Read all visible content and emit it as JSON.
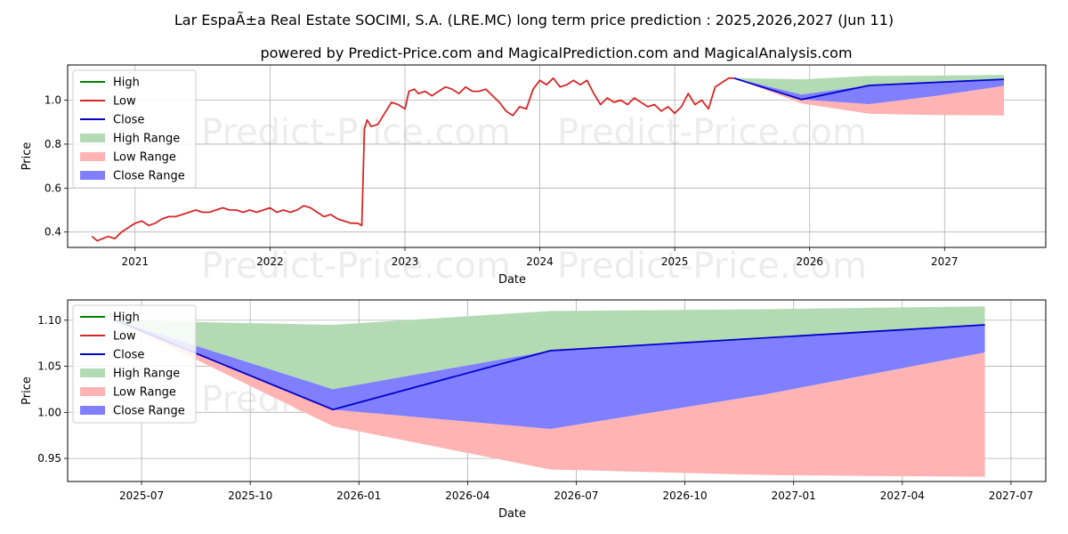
{
  "title": "Lar EspaÃ±a Real Estate SOCIMI, S.A. (LRE.MC) long term price prediction : 2025,2026,2027 (Jun 11)",
  "subtitle": "powered by Predict-Price.com and MagicalPrediction.com and MagicalAnalysis.com",
  "watermark": "Predict-Price.com",
  "colors": {
    "high": "#008000",
    "low": "#d62728",
    "close": "#0000cc",
    "high_range": "#b3dbb3",
    "low_range": "#ffb3b3",
    "close_range": "#7f7fff",
    "grid": "#b0b0b0"
  },
  "legend": [
    "High",
    "Low",
    "Close",
    "High Range",
    "Low Range",
    "Close Range"
  ],
  "chart_data": [
    {
      "type": "line",
      "name": "top",
      "xlabel": "Date",
      "ylabel": "Price",
      "xlim": [
        2020.5,
        2027.75
      ],
      "ylim": [
        0.33,
        1.16
      ],
      "x_ticks": [
        2021,
        2022,
        2023,
        2024,
        2025,
        2026,
        2027
      ],
      "x_tick_labels": [
        "2021",
        "2022",
        "2023",
        "2024",
        "2025",
        "2026",
        "2027"
      ],
      "y_ticks": [
        0.4,
        0.6,
        0.8,
        1.0
      ],
      "y_tick_labels": [
        "0.4",
        "0.6",
        "0.8",
        "1.0"
      ],
      "history": {
        "name": "Low",
        "x": [
          2020.68,
          2020.72,
          2020.76,
          2020.8,
          2020.85,
          2020.9,
          2020.95,
          2021.0,
          2021.05,
          2021.1,
          2021.15,
          2021.2,
          2021.25,
          2021.3,
          2021.35,
          2021.4,
          2021.45,
          2021.5,
          2021.55,
          2021.6,
          2021.65,
          2021.7,
          2021.75,
          2021.8,
          2021.85,
          2021.9,
          2021.95,
          2022.0,
          2022.05,
          2022.1,
          2022.15,
          2022.2,
          2022.25,
          2022.3,
          2022.35,
          2022.4,
          2022.45,
          2022.5,
          2022.55,
          2022.6,
          2022.65,
          2022.68,
          2022.7,
          2022.72,
          2022.75,
          2022.8,
          2022.85,
          2022.9,
          2022.95,
          2023.0,
          2023.03,
          2023.07,
          2023.1,
          2023.15,
          2023.2,
          2023.25,
          2023.3,
          2023.35,
          2023.4,
          2023.45,
          2023.5,
          2023.55,
          2023.6,
          2023.65,
          2023.7,
          2023.75,
          2023.8,
          2023.85,
          2023.9,
          2023.95,
          2024.0,
          2024.05,
          2024.1,
          2024.15,
          2024.2,
          2024.25,
          2024.3,
          2024.35,
          2024.4,
          2024.45,
          2024.5,
          2024.55,
          2024.6,
          2024.65,
          2024.7,
          2024.75,
          2024.8,
          2024.85,
          2024.9,
          2024.95,
          2025.0,
          2025.05,
          2025.1,
          2025.15,
          2025.2,
          2025.25,
          2025.3,
          2025.35,
          2025.4,
          2025.44
        ],
        "y": [
          0.38,
          0.36,
          0.37,
          0.38,
          0.37,
          0.4,
          0.42,
          0.44,
          0.45,
          0.43,
          0.44,
          0.46,
          0.47,
          0.47,
          0.48,
          0.49,
          0.5,
          0.49,
          0.49,
          0.5,
          0.51,
          0.5,
          0.5,
          0.49,
          0.5,
          0.49,
          0.5,
          0.51,
          0.49,
          0.5,
          0.49,
          0.5,
          0.52,
          0.51,
          0.49,
          0.47,
          0.48,
          0.46,
          0.45,
          0.44,
          0.44,
          0.43,
          0.87,
          0.91,
          0.88,
          0.89,
          0.94,
          0.99,
          0.98,
          0.96,
          1.04,
          1.05,
          1.03,
          1.04,
          1.02,
          1.04,
          1.06,
          1.05,
          1.03,
          1.06,
          1.04,
          1.04,
          1.05,
          1.02,
          0.99,
          0.95,
          0.93,
          0.97,
          0.96,
          1.05,
          1.09,
          1.07,
          1.1,
          1.06,
          1.07,
          1.09,
          1.07,
          1.09,
          1.03,
          0.98,
          1.01,
          0.99,
          1.0,
          0.98,
          1.01,
          0.99,
          0.97,
          0.98,
          0.95,
          0.97,
          0.94,
          0.97,
          1.03,
          0.98,
          1.0,
          0.96,
          1.06,
          1.08,
          1.1,
          1.1
        ]
      },
      "forecast": {
        "x": [
          2025.44,
          2025.94,
          2026.44,
          2026.94,
          2027.44
        ],
        "high_range_upper": [
          1.1,
          1.095,
          1.11,
          1.112,
          1.115
        ],
        "low_range_lower": [
          1.1,
          0.985,
          0.938,
          0.932,
          0.93
        ],
        "close_range_upper": [
          1.1,
          1.025,
          1.067,
          1.08,
          1.095
        ],
        "close_range_lower": [
          1.1,
          1.003,
          0.982,
          1.02,
          1.065
        ],
        "close": [
          1.1,
          1.003,
          1.067,
          1.081,
          1.095
        ]
      }
    },
    {
      "type": "line",
      "name": "bottom",
      "xlabel": "Date",
      "ylabel": "Price",
      "xlim": [
        2025.33,
        2027.58
      ],
      "ylim": [
        0.925,
        1.122
      ],
      "x_ticks": [
        2025.5,
        2025.75,
        2026.0,
        2026.25,
        2026.5,
        2026.75,
        2027.0,
        2027.25,
        2027.5
      ],
      "x_tick_labels": [
        "2025-07",
        "2025-10",
        "2026-01",
        "2026-04",
        "2026-07",
        "2026-10",
        "2027-01",
        "2027-04",
        "2027-07"
      ],
      "y_ticks": [
        0.95,
        1.0,
        1.05,
        1.1
      ],
      "y_tick_labels": [
        "0.95",
        "1.00",
        "1.05",
        "1.10"
      ],
      "forecast": {
        "x": [
          2025.44,
          2025.94,
          2026.44,
          2026.94,
          2027.44
        ],
        "high_range_upper": [
          1.1,
          1.095,
          1.11,
          1.112,
          1.115
        ],
        "low_range_lower": [
          1.1,
          0.985,
          0.938,
          0.932,
          0.93
        ],
        "close_range_upper": [
          1.1,
          1.025,
          1.067,
          1.08,
          1.095
        ],
        "close_range_lower": [
          1.1,
          1.003,
          0.982,
          1.02,
          1.065
        ],
        "close": [
          1.1,
          1.003,
          1.067,
          1.081,
          1.095
        ]
      }
    }
  ]
}
